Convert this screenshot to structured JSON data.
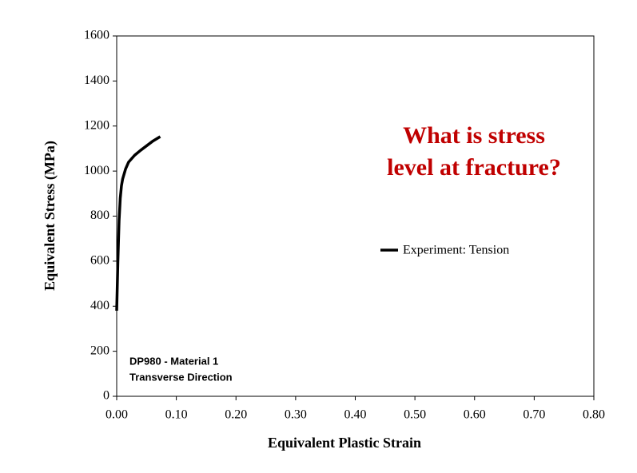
{
  "chart_data": {
    "type": "line",
    "xlabel": "Equivalent Plastic Strain",
    "ylabel": "Equivalent Stress (MPa)",
    "x": [
      0,
      0.002,
      0.004,
      0.006,
      0.008,
      0.01,
      0.015,
      0.02,
      0.03,
      0.04,
      0.05,
      0.06,
      0.073
    ],
    "series": [
      {
        "name": "Experiment: Tension",
        "color": "#000000",
        "values": [
          380,
          600,
          780,
          880,
          935,
          965,
          1010,
          1040,
          1070,
          1092,
          1112,
          1132,
          1153
        ]
      }
    ],
    "xlim": [
      0,
      0.8
    ],
    "xticks": [
      {
        "value": 0,
        "label": "0.00"
      },
      {
        "value": 0.1,
        "label": "0.10"
      },
      {
        "value": 0.2,
        "label": "0.20"
      },
      {
        "value": 0.3,
        "label": "0.30"
      },
      {
        "value": 0.4,
        "label": "0.40"
      },
      {
        "value": 0.5,
        "label": "0.50"
      },
      {
        "value": 0.6,
        "label": "0.60"
      },
      {
        "value": 0.7,
        "label": "0.70"
      },
      {
        "value": 0.8,
        "label": "0.80"
      }
    ],
    "ylim": [
      0,
      1600
    ],
    "yticks": [
      0,
      200,
      400,
      600,
      800,
      1000,
      1200,
      1400,
      1600
    ],
    "grid": false,
    "legend": "center-right",
    "annotation": [
      "What is stress",
      "level at fracture?"
    ],
    "note": [
      "DP980 - Material 1",
      "Transverse Direction"
    ]
  }
}
